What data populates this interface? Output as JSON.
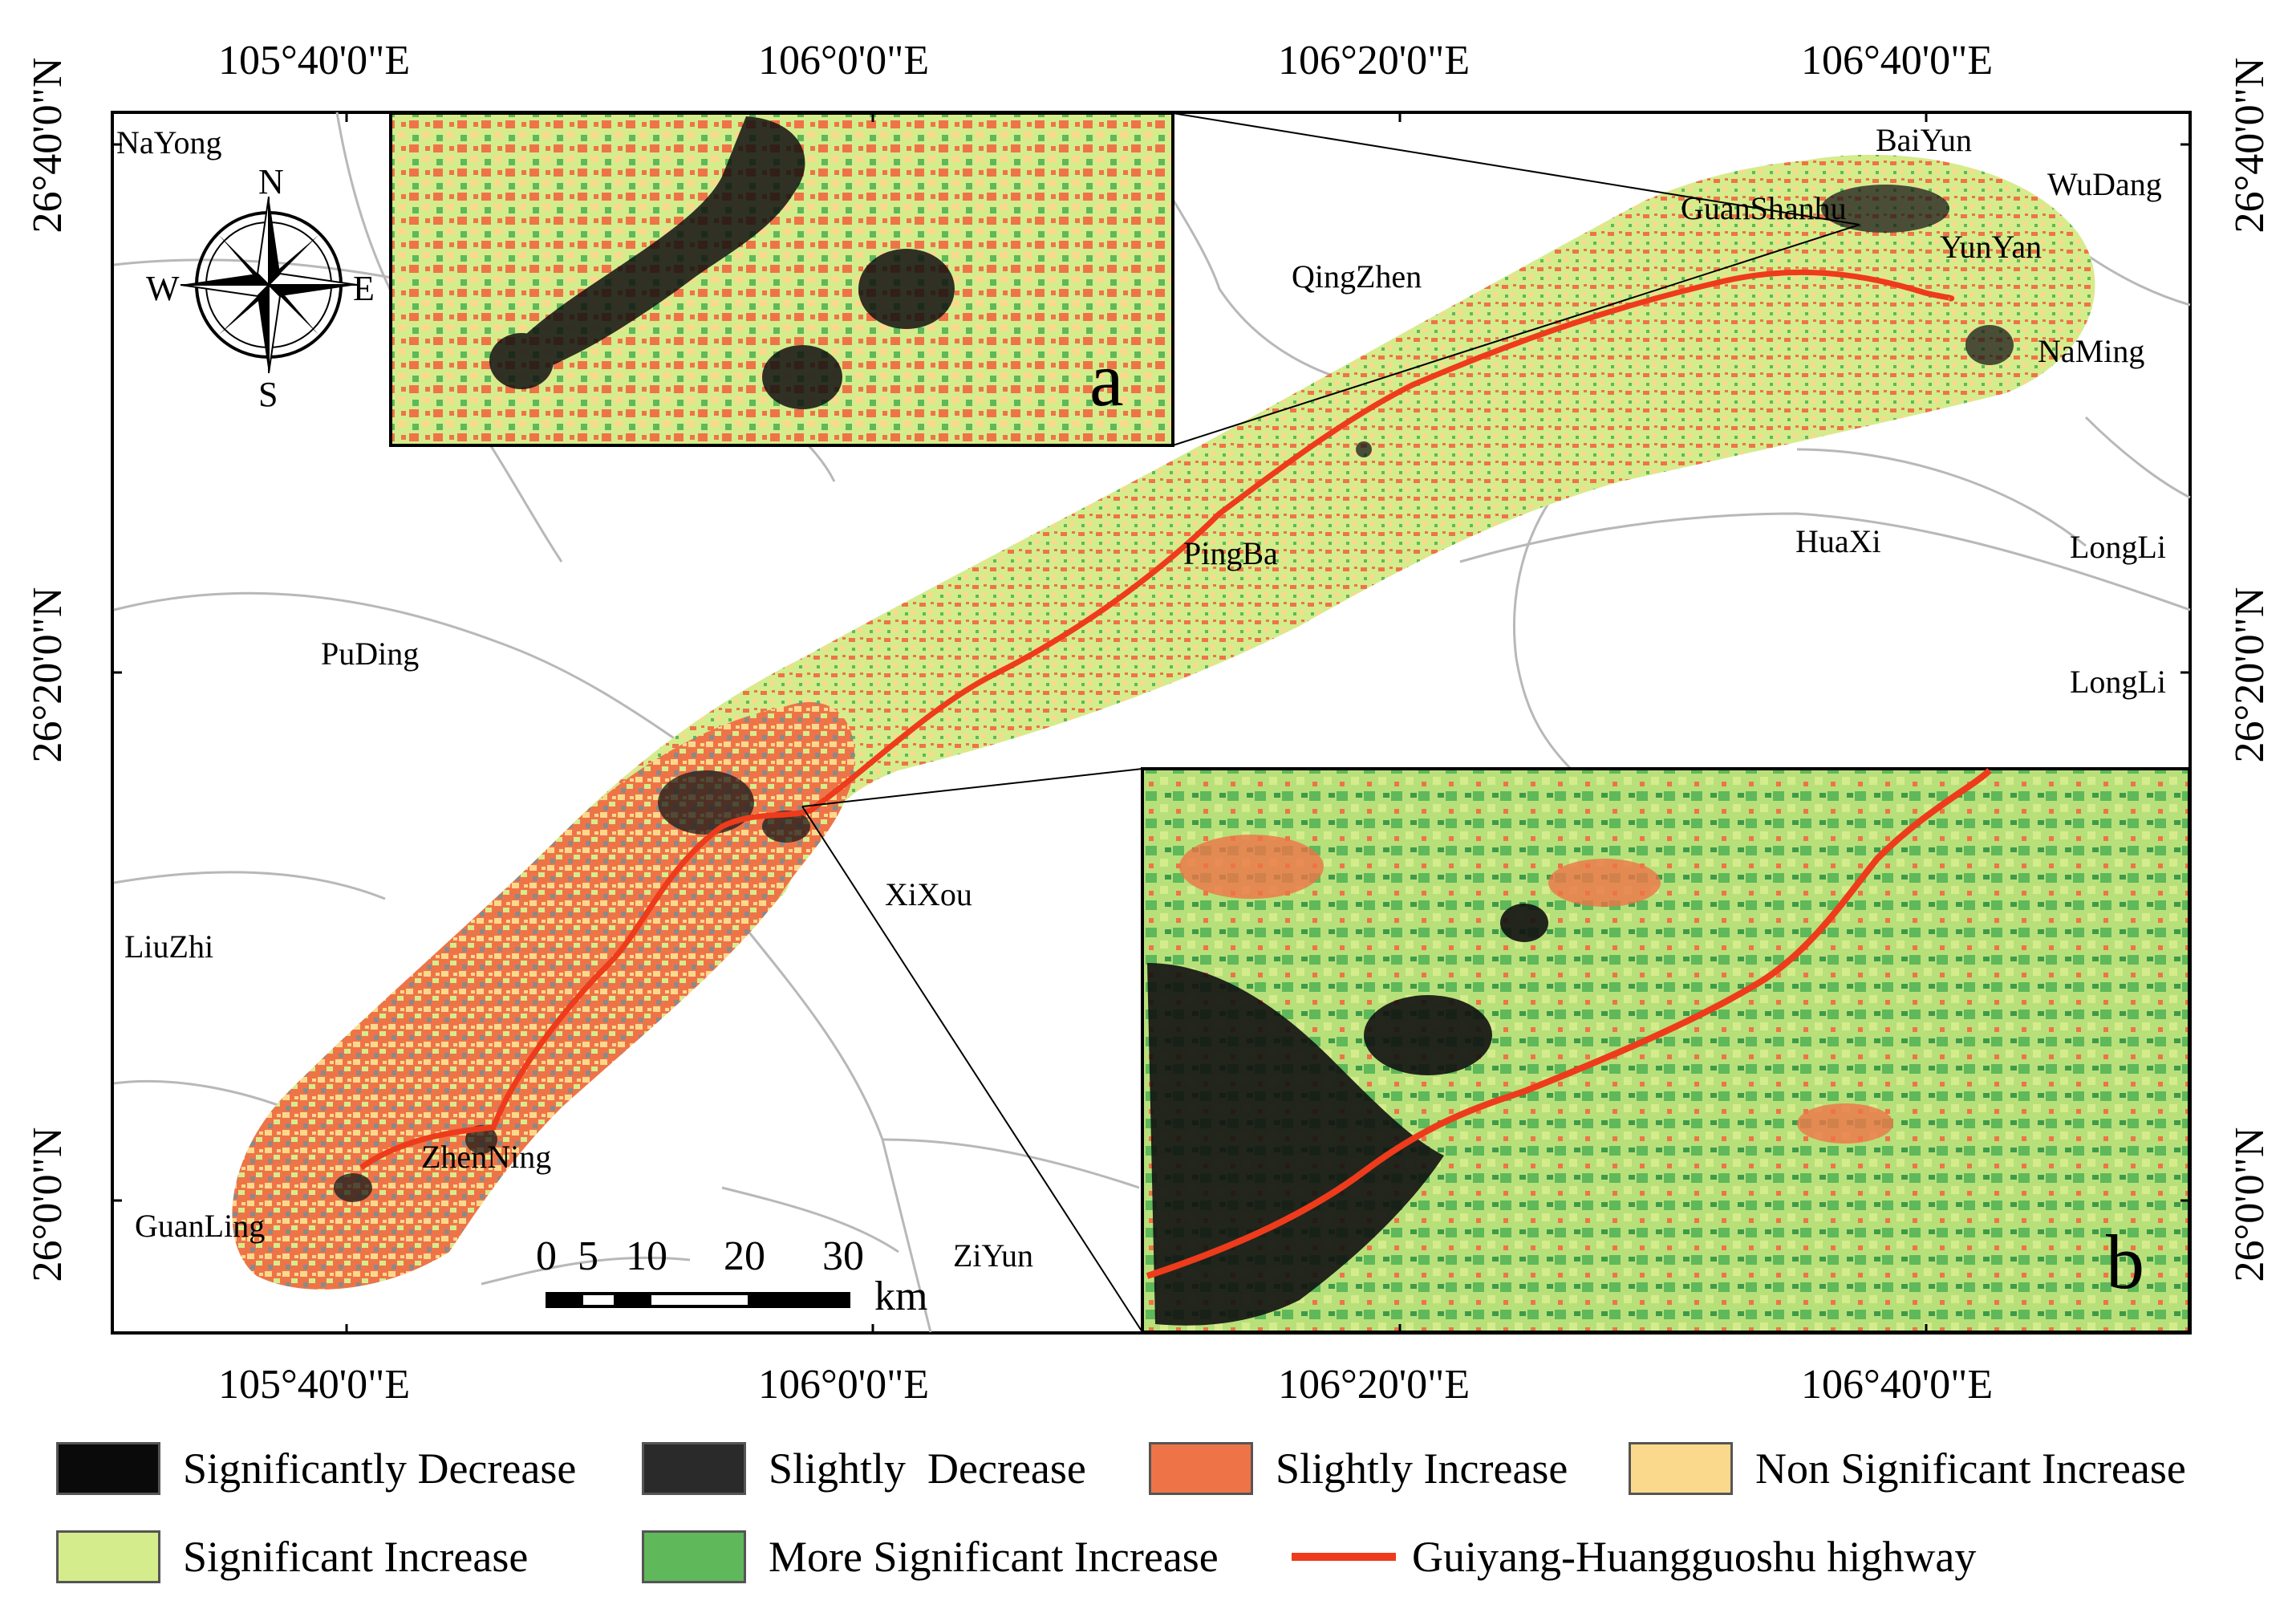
{
  "colors": {
    "significantly_decrease": "#0a0a0a",
    "slightly_decrease": "#2a2a2a",
    "slightly_increase": "#ee7448",
    "non_significant_increase": "#fbd98c",
    "significant_increase": "#d5ec8c",
    "more_significant_increase": "#5fb85a",
    "highway": "#ee3b1c",
    "boundary": "#b8b8b8"
  },
  "axes": {
    "top_lon": [
      "105°40'0\"E",
      "106°0'0\"E",
      "106°20'0\"E",
      "106°40'0\"E"
    ],
    "bottom_lon": [
      "105°40'0\"E",
      "106°0'0\"E",
      "106°20'0\"E",
      "106°40'0\"E"
    ],
    "left_lat": [
      "26°40'0\"N",
      "26°20'0\"N",
      "26°0'0\"N"
    ],
    "right_lat": [
      "26°40'0\"N",
      "26°20'0\"N",
      "26°0'0\"N"
    ]
  },
  "places": {
    "nayong": "NaYong",
    "baiyun": "BaiYun",
    "wudang": "WuDang",
    "guanshanhu": "GuanShanhu",
    "yunyan": "YunYan",
    "qingzhen": "QingZhen",
    "naming": "NaMing",
    "pingba": "PingBa",
    "huaxi": "HuaXi",
    "longli1": "LongLi",
    "longli2": "LongLi",
    "puding": "PuDing",
    "xixou": "XiXou",
    "liuzhi": "LiuZhi",
    "zhenning": "ZhenNing",
    "guanling": "GuanLing",
    "ziyun": "ZiYun"
  },
  "compass": {
    "n": "N",
    "s": "S",
    "e": "E",
    "w": "W"
  },
  "scale_bar": {
    "ticks": [
      "0",
      "5",
      "10",
      "20",
      "30"
    ],
    "unit": "km"
  },
  "insets": {
    "a": "a",
    "b": "b"
  },
  "legend": {
    "significantly_decrease": "Significantly Decrease",
    "slightly_decrease": "Slightly  Decrease",
    "slightly_increase": "Slightly Increase",
    "non_significant_increase": "Non Significant Increase",
    "significant_increase": "Significant Increase",
    "more_significant_increase": "More Significant Increase",
    "highway": "Guiyang-Huangguoshu highway"
  }
}
